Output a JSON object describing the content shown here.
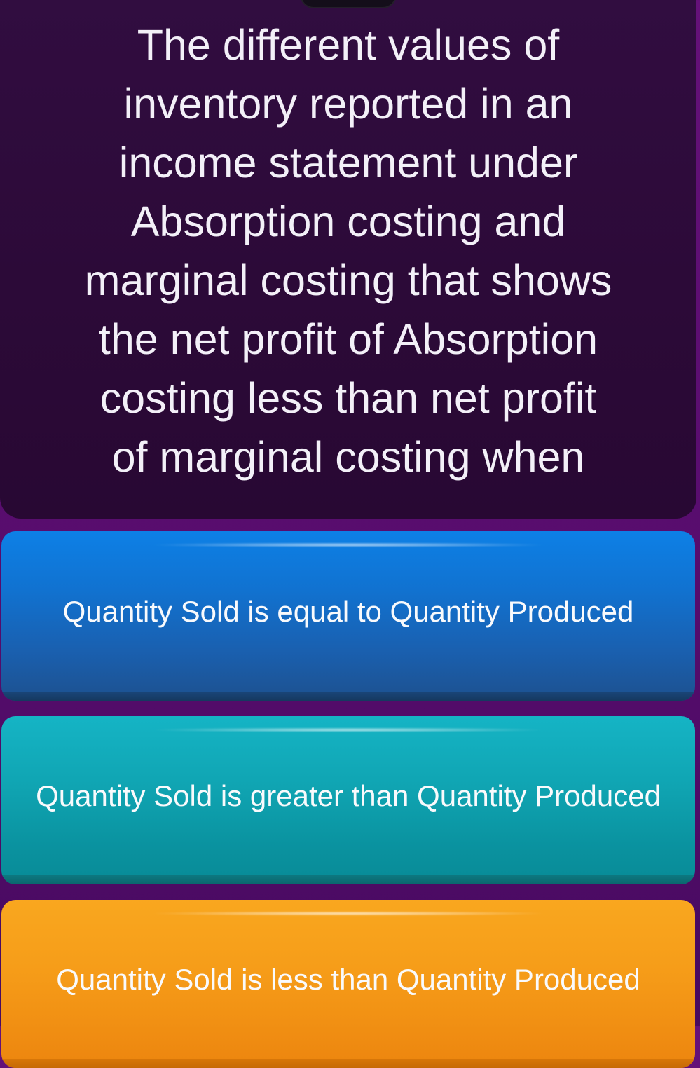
{
  "question": {
    "text": "The different values of\ninventory reported in an\nincome statement under\nAbsorption costing and\nmarginal costing that shows\nthe net profit of Absorption\ncosting less than net profit\nof marginal costing when"
  },
  "answers": [
    {
      "label": "Quantity Sold is equal to Quantity Produced",
      "color": "#0d80e6"
    },
    {
      "label": "Quantity Sold is greater than Quantity Produced",
      "color": "#12aebc"
    },
    {
      "label": "Quantity Sold is less than Quantity Produced",
      "color": "#f8a01b"
    }
  ],
  "colors": {
    "page_background_top": "#651179",
    "page_background_bottom": "#470a60",
    "question_card_background": "#2c0a38",
    "text": "#f9fafc",
    "answer_blue": "#0d80e6",
    "answer_teal": "#12aebc",
    "answer_orange": "#f8a01b"
  }
}
